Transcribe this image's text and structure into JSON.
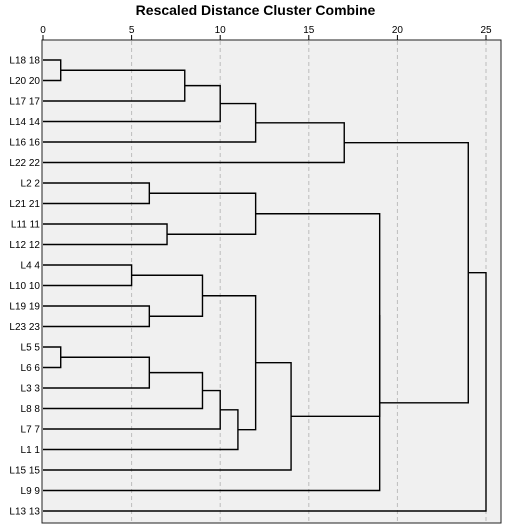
{
  "chart_data": {
    "type": "dendrogram",
    "title": "Rescaled Distance Cluster Combine",
    "xlim": [
      0,
      25
    ],
    "x_ticks": [
      "0",
      "5",
      "10",
      "15",
      "20",
      "25"
    ],
    "grid": "vertical dashed",
    "leaves": [
      {
        "id": "L18",
        "label": "L18 18"
      },
      {
        "id": "L20",
        "label": "L20 20"
      },
      {
        "id": "L17",
        "label": "L17 17"
      },
      {
        "id": "L14",
        "label": "L14 14"
      },
      {
        "id": "L16",
        "label": "L16 16"
      },
      {
        "id": "L22",
        "label": "L22 22"
      },
      {
        "id": "L2",
        "label": "L2 2"
      },
      {
        "id": "L21",
        "label": "L21 21"
      },
      {
        "id": "L11",
        "label": "L11 11"
      },
      {
        "id": "L12",
        "label": "L12 12"
      },
      {
        "id": "L4",
        "label": "L4 4"
      },
      {
        "id": "L10",
        "label": "L10 10"
      },
      {
        "id": "L19",
        "label": "L19 19"
      },
      {
        "id": "L23",
        "label": "L23 23"
      },
      {
        "id": "L5",
        "label": "L5 5"
      },
      {
        "id": "L6",
        "label": "L6 6"
      },
      {
        "id": "L3",
        "label": "L3 3"
      },
      {
        "id": "L8",
        "label": "L8 8"
      },
      {
        "id": "L7",
        "label": "L7 7"
      },
      {
        "id": "L1",
        "label": "L1 1"
      },
      {
        "id": "L15",
        "label": "L15 15"
      },
      {
        "id": "L9",
        "label": "L9 9"
      },
      {
        "id": "L13",
        "label": "L13 13"
      }
    ],
    "merges": [
      {
        "id": "m1",
        "a": "L18",
        "b": "L20",
        "distance": 1
      },
      {
        "id": "m2",
        "a": "L5",
        "b": "L6",
        "distance": 1
      },
      {
        "id": "m3",
        "a": "L4",
        "b": "L10",
        "distance": 5
      },
      {
        "id": "m4",
        "a": "L2",
        "b": "L21",
        "distance": 6
      },
      {
        "id": "m5",
        "a": "L19",
        "b": "L23",
        "distance": 6
      },
      {
        "id": "m6",
        "a": "m2",
        "b": "L3",
        "distance": 6
      },
      {
        "id": "m7",
        "a": "L11",
        "b": "L12",
        "distance": 7
      },
      {
        "id": "m8",
        "a": "m1",
        "b": "L17",
        "distance": 8
      },
      {
        "id": "m9",
        "a": "m3",
        "b": "m5",
        "distance": 9
      },
      {
        "id": "m10",
        "a": "m6",
        "b": "L8",
        "distance": 9
      },
      {
        "id": "m11",
        "a": "m8",
        "b": "L14",
        "distance": 10
      },
      {
        "id": "m12",
        "a": "m10",
        "b": "L7",
        "distance": 10
      },
      {
        "id": "m13",
        "a": "m12",
        "b": "L1",
        "distance": 11
      },
      {
        "id": "m14",
        "a": "m11",
        "b": "L16",
        "distance": 12
      },
      {
        "id": "m15",
        "a": "m4",
        "b": "m7",
        "distance": 12
      },
      {
        "id": "m16",
        "a": "m9",
        "b": "m13",
        "distance": 12
      },
      {
        "id": "m17",
        "a": "m16",
        "b": "L15",
        "distance": 14
      },
      {
        "id": "m18",
        "a": "m14",
        "b": "L22",
        "distance": 17
      },
      {
        "id": "m19",
        "a": "m15",
        "b": "m17",
        "distance": 19
      },
      {
        "id": "m20",
        "a": "m19",
        "b": "L9",
        "distance": 19
      },
      {
        "id": "m21",
        "a": "m18",
        "b": "m20",
        "distance": 24
      },
      {
        "id": "m22",
        "a": "m21",
        "b": "L13",
        "distance": 25
      }
    ]
  }
}
